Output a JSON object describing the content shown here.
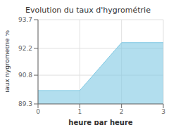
{
  "chart_data": {
    "type": "area",
    "title": "Evolution du taux d'hygrométrie",
    "xlabel": "heure par heure",
    "ylabel": "Taux hygrométrie %",
    "x": [
      0,
      1,
      2,
      3
    ],
    "values": [
      90.0,
      90.0,
      92.5,
      92.5
    ],
    "color": "#7ec8e3",
    "xlim": [
      0,
      3
    ],
    "ylim": [
      89.3,
      93.7
    ],
    "xticks": [
      0,
      1,
      2,
      3
    ],
    "yticks": [
      89.3,
      90.8,
      92.2,
      93.7
    ],
    "grid": true
  }
}
